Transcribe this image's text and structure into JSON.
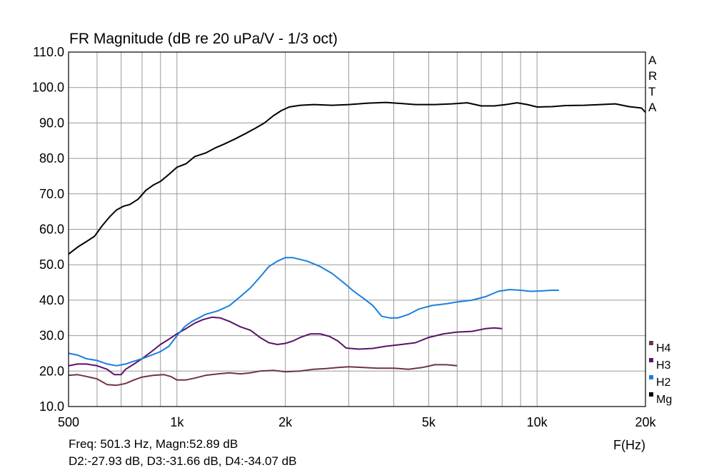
{
  "chart_data": {
    "type": "line",
    "title": "FR Magnitude (dB re 20 uPa/V - 1/3 oct)",
    "xlabel": "F(Hz)",
    "ylabel": "",
    "xscale": "log",
    "xlim": [
      500,
      20000
    ],
    "ylim": [
      10,
      110
    ],
    "grid": true,
    "legend_position": "right",
    "brand": [
      "A",
      "R",
      "T",
      "A"
    ],
    "x_tick_labels": [
      {
        "value": 500,
        "label": "500"
      },
      {
        "value": 1000,
        "label": "1k"
      },
      {
        "value": 2000,
        "label": "2k"
      },
      {
        "value": 5000,
        "label": "5k"
      },
      {
        "value": 10000,
        "label": "10k"
      },
      {
        "value": 20000,
        "label": "20k"
      }
    ],
    "x_minor_gridlines": [
      600,
      700,
      800,
      900,
      3000,
      4000,
      6000,
      7000,
      8000,
      9000
    ],
    "y_ticks": [
      {
        "value": 10,
        "label": "10.0"
      },
      {
        "value": 20,
        "label": "20.0"
      },
      {
        "value": 30,
        "label": "30.0"
      },
      {
        "value": 40,
        "label": "40.0"
      },
      {
        "value": 50,
        "label": "50.0"
      },
      {
        "value": 60,
        "label": "60.0"
      },
      {
        "value": 70,
        "label": "70.0"
      },
      {
        "value": 80,
        "label": "80.0"
      },
      {
        "value": 90,
        "label": "90.0"
      },
      {
        "value": 100,
        "label": "100.0"
      },
      {
        "value": 110,
        "label": "110.0"
      }
    ],
    "series": [
      {
        "name": "Mg",
        "color": "#000000",
        "points": [
          [
            500,
            53.0
          ],
          [
            530,
            55.0
          ],
          [
            560,
            56.5
          ],
          [
            590,
            58.0
          ],
          [
            620,
            61.0
          ],
          [
            650,
            63.5
          ],
          [
            680,
            65.5
          ],
          [
            710,
            66.5
          ],
          [
            740,
            67.0
          ],
          [
            780,
            68.5
          ],
          [
            820,
            71.0
          ],
          [
            860,
            72.5
          ],
          [
            900,
            73.5
          ],
          [
            950,
            75.5
          ],
          [
            1000,
            77.5
          ],
          [
            1060,
            78.5
          ],
          [
            1120,
            80.5
          ],
          [
            1200,
            81.5
          ],
          [
            1280,
            83.0
          ],
          [
            1350,
            84.0
          ],
          [
            1450,
            85.5
          ],
          [
            1550,
            87.0
          ],
          [
            1650,
            88.5
          ],
          [
            1750,
            90.0
          ],
          [
            1850,
            92.0
          ],
          [
            1950,
            93.5
          ],
          [
            2050,
            94.5
          ],
          [
            2200,
            95.0
          ],
          [
            2400,
            95.2
          ],
          [
            2700,
            95.0
          ],
          [
            3000,
            95.2
          ],
          [
            3400,
            95.6
          ],
          [
            3800,
            95.8
          ],
          [
            4200,
            95.5
          ],
          [
            4600,
            95.2
          ],
          [
            5200,
            95.2
          ],
          [
            5800,
            95.4
          ],
          [
            6400,
            95.7
          ],
          [
            7000,
            94.8
          ],
          [
            7600,
            94.8
          ],
          [
            8200,
            95.2
          ],
          [
            8800,
            95.7
          ],
          [
            9400,
            95.2
          ],
          [
            10000,
            94.5
          ],
          [
            11000,
            94.6
          ],
          [
            12000,
            94.9
          ],
          [
            13500,
            95.0
          ],
          [
            15000,
            95.2
          ],
          [
            16500,
            95.4
          ],
          [
            18000,
            94.6
          ],
          [
            19500,
            94.2
          ],
          [
            20000,
            93.0
          ]
        ]
      },
      {
        "name": "H2",
        "color": "#1a7fdd",
        "points": [
          [
            500,
            25.0
          ],
          [
            530,
            24.5
          ],
          [
            560,
            23.5
          ],
          [
            600,
            23.0
          ],
          [
            640,
            22.0
          ],
          [
            680,
            21.5
          ],
          [
            720,
            22.0
          ],
          [
            760,
            22.8
          ],
          [
            800,
            23.5
          ],
          [
            850,
            24.5
          ],
          [
            900,
            25.5
          ],
          [
            950,
            27.0
          ],
          [
            1000,
            30.0
          ],
          [
            1050,
            32.5
          ],
          [
            1100,
            34.0
          ],
          [
            1150,
            35.0
          ],
          [
            1200,
            36.0
          ],
          [
            1300,
            37.0
          ],
          [
            1400,
            38.5
          ],
          [
            1500,
            41.0
          ],
          [
            1600,
            43.5
          ],
          [
            1700,
            46.5
          ],
          [
            1800,
            49.5
          ],
          [
            1900,
            51.0
          ],
          [
            2000,
            52.0
          ],
          [
            2100,
            52.0
          ],
          [
            2300,
            51.0
          ],
          [
            2500,
            49.5
          ],
          [
            2700,
            47.5
          ],
          [
            2900,
            45.0
          ],
          [
            3100,
            42.5
          ],
          [
            3300,
            40.5
          ],
          [
            3500,
            38.5
          ],
          [
            3700,
            35.5
          ],
          [
            3900,
            35.0
          ],
          [
            4100,
            35.0
          ],
          [
            4400,
            36.0
          ],
          [
            4700,
            37.5
          ],
          [
            5100,
            38.5
          ],
          [
            5600,
            39.0
          ],
          [
            6000,
            39.5
          ],
          [
            6600,
            40.0
          ],
          [
            7200,
            41.0
          ],
          [
            7800,
            42.5
          ],
          [
            8400,
            43.0
          ],
          [
            9000,
            42.8
          ],
          [
            9600,
            42.5
          ],
          [
            10200,
            42.6
          ],
          [
            11000,
            42.8
          ],
          [
            11500,
            42.8
          ]
        ]
      },
      {
        "name": "H3",
        "color": "#5c1169",
        "points": [
          [
            500,
            21.5
          ],
          [
            530,
            22.0
          ],
          [
            560,
            22.0
          ],
          [
            600,
            21.5
          ],
          [
            640,
            20.5
          ],
          [
            670,
            19.0
          ],
          [
            700,
            19.0
          ],
          [
            720,
            20.5
          ],
          [
            760,
            22.0
          ],
          [
            800,
            23.5
          ],
          [
            850,
            25.5
          ],
          [
            900,
            27.5
          ],
          [
            950,
            29.0
          ],
          [
            1000,
            30.5
          ],
          [
            1060,
            32.0
          ],
          [
            1120,
            33.5
          ],
          [
            1180,
            34.5
          ],
          [
            1250,
            35.2
          ],
          [
            1320,
            35.0
          ],
          [
            1400,
            34.0
          ],
          [
            1500,
            32.5
          ],
          [
            1600,
            31.5
          ],
          [
            1700,
            29.5
          ],
          [
            1800,
            28.0
          ],
          [
            1900,
            27.5
          ],
          [
            2000,
            27.8
          ],
          [
            2100,
            28.5
          ],
          [
            2200,
            29.5
          ],
          [
            2350,
            30.5
          ],
          [
            2500,
            30.5
          ],
          [
            2650,
            29.8
          ],
          [
            2800,
            28.5
          ],
          [
            2950,
            26.5
          ],
          [
            3200,
            26.2
          ],
          [
            3500,
            26.4
          ],
          [
            3800,
            27.0
          ],
          [
            4200,
            27.5
          ],
          [
            4600,
            28.0
          ],
          [
            5000,
            29.5
          ],
          [
            5500,
            30.5
          ],
          [
            6000,
            31.0
          ],
          [
            6600,
            31.2
          ],
          [
            7200,
            32.0
          ],
          [
            7600,
            32.2
          ],
          [
            8000,
            32.0
          ]
        ]
      },
      {
        "name": "H4",
        "color": "#6e3448",
        "points": [
          [
            500,
            18.8
          ],
          [
            530,
            19.0
          ],
          [
            560,
            18.5
          ],
          [
            600,
            17.8
          ],
          [
            640,
            16.2
          ],
          [
            680,
            16.0
          ],
          [
            720,
            16.5
          ],
          [
            760,
            17.5
          ],
          [
            800,
            18.3
          ],
          [
            860,
            18.8
          ],
          [
            920,
            19.0
          ],
          [
            960,
            18.5
          ],
          [
            1000,
            17.5
          ],
          [
            1060,
            17.5
          ],
          [
            1120,
            18.0
          ],
          [
            1200,
            18.8
          ],
          [
            1300,
            19.2
          ],
          [
            1400,
            19.5
          ],
          [
            1500,
            19.2
          ],
          [
            1600,
            19.5
          ],
          [
            1700,
            20.0
          ],
          [
            1850,
            20.2
          ],
          [
            2000,
            19.8
          ],
          [
            2200,
            20.0
          ],
          [
            2400,
            20.5
          ],
          [
            2600,
            20.7
          ],
          [
            2800,
            21.0
          ],
          [
            3000,
            21.2
          ],
          [
            3300,
            21.0
          ],
          [
            3600,
            20.8
          ],
          [
            4000,
            20.8
          ],
          [
            4400,
            20.5
          ],
          [
            4800,
            21.0
          ],
          [
            5200,
            21.8
          ],
          [
            5600,
            21.8
          ],
          [
            6000,
            21.5
          ]
        ]
      }
    ],
    "legend": [
      {
        "name": "H4",
        "color": "#6e3448"
      },
      {
        "name": "H3",
        "color": "#5c1169"
      },
      {
        "name": "H2",
        "color": "#1a7fdd"
      },
      {
        "name": "Mg",
        "color": "#000000"
      }
    ]
  },
  "readout": {
    "line1": "Freq: 501.3 Hz, Magn:52.89 dB",
    "line2": "D2:-27.93 dB, D3:-31.66 dB, D4:-34.07 dB"
  }
}
